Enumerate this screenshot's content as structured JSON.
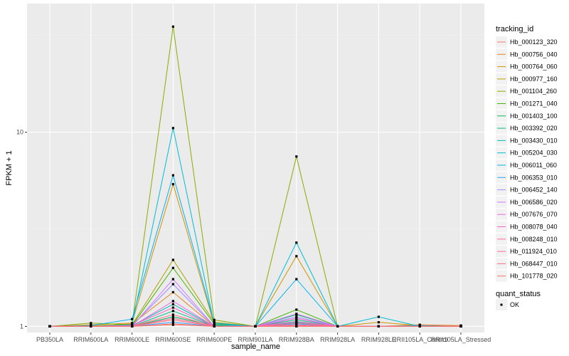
{
  "chart_data": {
    "type": "line",
    "xlabel": "sample_name",
    "ylabel": "FPKM + 1",
    "y_scale": "log10",
    "ylim": [
      0.93,
      46
    ],
    "y_ticks": [
      1,
      10
    ],
    "y_tick_labels": [
      "1",
      "10"
    ],
    "grid": true,
    "categories": [
      "PB350LA",
      "RRIM600LA",
      "RRIM600LE",
      "RRIM600SE",
      "RRIM600PE",
      "RRIM901LA",
      "RRIM928BA",
      "RRIM928LA",
      "RRIM928LE",
      "RRII105LA_Control",
      "RRII105LA_Stressed"
    ],
    "legend": {
      "title": "tracking_id",
      "position": "right",
      "status_title": "quant_status",
      "status_items": [
        "OK"
      ]
    },
    "series": [
      {
        "name": "Hb_000123_320",
        "color": "#F8766D",
        "values": [
          1.0,
          1.0,
          1.0,
          1.02,
          1.0,
          1.0,
          1.0,
          1.0,
          1.0,
          1.0,
          1.0
        ]
      },
      {
        "name": "Hb_000756_040",
        "color": "#E7851E",
        "values": [
          1.0,
          1.0,
          1.03,
          1.5,
          1.0,
          1.0,
          1.05,
          1.0,
          1.0,
          1.02,
          1.01
        ]
      },
      {
        "name": "Hb_000764_060",
        "color": "#D09400",
        "values": [
          1.0,
          1.02,
          1.04,
          5.4,
          1.02,
          1.0,
          2.3,
          1.0,
          1.05,
          1.01,
          1.0
        ]
      },
      {
        "name": "Hb_000977_160",
        "color": "#B2A100",
        "values": [
          1.0,
          1.01,
          1.02,
          2.2,
          1.05,
          1.0,
          1.1,
          1.0,
          1.0,
          1.0,
          1.0
        ]
      },
      {
        "name": "Hb_001104_260",
        "color": "#89AC00",
        "values": [
          1.0,
          1.04,
          1.02,
          35.0,
          1.08,
          1.0,
          7.5,
          1.0,
          1.0,
          1.01,
          1.0
        ]
      },
      {
        "name": "Hb_001271_040",
        "color": "#45B500",
        "values": [
          1.0,
          1.0,
          1.01,
          2.0,
          1.03,
          1.0,
          1.22,
          1.0,
          1.0,
          1.0,
          1.0
        ]
      },
      {
        "name": "Hb_001403_100",
        "color": "#00BC51",
        "values": [
          1.0,
          1.0,
          1.0,
          1.12,
          1.01,
          1.0,
          1.15,
          1.0,
          1.0,
          1.0,
          1.0
        ]
      },
      {
        "name": "Hb_003392_020",
        "color": "#00C087",
        "values": [
          1.0,
          1.0,
          1.0,
          1.2,
          1.0,
          1.0,
          1.08,
          1.0,
          1.0,
          1.0,
          1.0
        ]
      },
      {
        "name": "Hb_003430_010",
        "color": "#00C0B2",
        "values": [
          1.0,
          1.0,
          1.01,
          1.3,
          1.0,
          1.0,
          1.05,
          1.0,
          1.0,
          1.0,
          1.0
        ]
      },
      {
        "name": "Hb_005204_030",
        "color": "#00BCD6",
        "values": [
          1.0,
          1.0,
          1.02,
          10.5,
          1.02,
          1.0,
          2.7,
          1.0,
          1.12,
          1.0,
          1.0
        ]
      },
      {
        "name": "Hb_006011_060",
        "color": "#00B3F2",
        "values": [
          1.0,
          1.01,
          1.09,
          6.0,
          1.04,
          1.0,
          1.75,
          1.0,
          1.0,
          1.01,
          1.0
        ]
      },
      {
        "name": "Hb_006353_010",
        "color": "#29A3FF",
        "values": [
          1.0,
          1.0,
          1.0,
          1.05,
          1.0,
          1.0,
          1.03,
          1.0,
          1.0,
          1.0,
          1.0
        ]
      },
      {
        "name": "Hb_006452_140",
        "color": "#9C8DFF",
        "values": [
          1.0,
          1.0,
          1.01,
          1.65,
          1.0,
          1.0,
          1.12,
          1.0,
          1.0,
          1.0,
          1.0
        ]
      },
      {
        "name": "Hb_006586_020",
        "color": "#D277FF",
        "values": [
          1.0,
          1.0,
          1.0,
          1.75,
          1.0,
          1.0,
          1.16,
          1.0,
          1.0,
          1.0,
          1.0
        ]
      },
      {
        "name": "Hb_007676_070",
        "color": "#F166E8",
        "values": [
          1.0,
          1.0,
          1.0,
          1.35,
          1.0,
          1.0,
          1.1,
          1.0,
          1.0,
          1.0,
          1.0
        ]
      },
      {
        "name": "Hb_008078_040",
        "color": "#FF61C7",
        "values": [
          1.0,
          1.0,
          1.01,
          1.25,
          1.0,
          1.0,
          1.06,
          1.0,
          1.0,
          1.0,
          1.0
        ]
      },
      {
        "name": "Hb_008248_010",
        "color": "#FF689E",
        "values": [
          1.0,
          1.0,
          1.0,
          1.1,
          1.0,
          1.0,
          1.02,
          1.0,
          1.0,
          1.0,
          1.0
        ]
      },
      {
        "name": "Hb_011924_010",
        "color": "#FF6C91",
        "values": [
          1.0,
          1.0,
          1.0,
          1.15,
          1.0,
          1.0,
          1.04,
          1.0,
          1.0,
          1.0,
          1.0
        ]
      },
      {
        "name": "Hb_068447_010",
        "color": "#FF6F83",
        "values": [
          1.0,
          1.0,
          1.0,
          1.08,
          1.0,
          1.0,
          1.01,
          1.0,
          1.0,
          1.0,
          1.0
        ]
      },
      {
        "name": "Hb_101778_020",
        "color": "#F8766D",
        "values": [
          1.0,
          1.0,
          1.0,
          1.03,
          1.0,
          1.0,
          1.0,
          1.0,
          1.0,
          1.0,
          1.0
        ]
      }
    ]
  }
}
